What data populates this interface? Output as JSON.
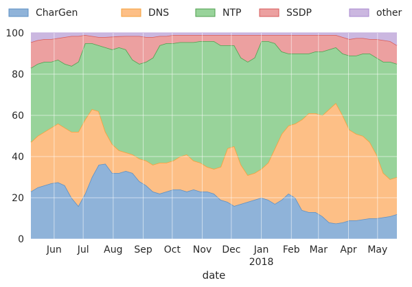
{
  "chart_data": {
    "type": "area",
    "stacked": true,
    "xlabel": "date",
    "ylabel": "",
    "ylim": [
      0,
      100
    ],
    "yticks": [
      0,
      20,
      40,
      60,
      80,
      100
    ],
    "grid": true,
    "legend_position": "top",
    "x_tick_labels": [
      {
        "date": "2017-06-01",
        "label": "Jun"
      },
      {
        "date": "2017-07-01",
        "label": "Jul"
      },
      {
        "date": "2017-08-01",
        "label": "Aug"
      },
      {
        "date": "2017-09-01",
        "label": "Sep"
      },
      {
        "date": "2017-10-01",
        "label": "Oct"
      },
      {
        "date": "2017-11-01",
        "label": "Nov"
      },
      {
        "date": "2017-12-01",
        "label": "Dec"
      },
      {
        "date": "2018-01-01",
        "label": "Jan\n2018"
      },
      {
        "date": "2018-02-01",
        "label": "Feb"
      },
      {
        "date": "2018-03-01",
        "label": "Mar"
      },
      {
        "date": "2018-04-01",
        "label": "Apr"
      },
      {
        "date": "2018-05-01",
        "label": "May"
      }
    ],
    "x": [
      "2017-05-08",
      "2017-05-15",
      "2017-05-22",
      "2017-05-29",
      "2017-06-05",
      "2017-06-12",
      "2017-06-19",
      "2017-06-26",
      "2017-07-03",
      "2017-07-10",
      "2017-07-17",
      "2017-07-24",
      "2017-07-31",
      "2017-08-07",
      "2017-08-14",
      "2017-08-21",
      "2017-08-28",
      "2017-09-04",
      "2017-09-11",
      "2017-09-18",
      "2017-09-25",
      "2017-10-02",
      "2017-10-09",
      "2017-10-16",
      "2017-10-23",
      "2017-10-30",
      "2017-11-06",
      "2017-11-13",
      "2017-11-20",
      "2017-11-27",
      "2017-12-04",
      "2017-12-11",
      "2017-12-18",
      "2017-12-25",
      "2018-01-01",
      "2018-01-08",
      "2018-01-15",
      "2018-01-22",
      "2018-01-29",
      "2018-02-05",
      "2018-02-12",
      "2018-02-19",
      "2018-02-26",
      "2018-03-05",
      "2018-03-12",
      "2018-03-19",
      "2018-03-26",
      "2018-04-02",
      "2018-04-09",
      "2018-04-16",
      "2018-04-23",
      "2018-04-30",
      "2018-05-07",
      "2018-05-14",
      "2018-05-21"
    ],
    "series": [
      {
        "name": "CharGen",
        "color": "#8fb3d9",
        "edge": "#5b8fc4",
        "values": [
          23,
          25,
          26,
          27,
          27.5,
          26,
          20,
          16,
          22,
          30,
          36,
          36.5,
          32,
          32,
          33,
          32,
          28,
          26,
          23,
          22,
          23,
          24,
          24,
          23,
          24,
          23,
          23,
          22,
          19,
          18,
          16,
          17,
          18,
          19,
          20,
          19,
          17,
          19,
          22,
          20,
          14,
          13,
          13,
          11,
          8,
          7.5,
          8,
          9,
          9,
          9.5,
          10,
          10,
          10.5,
          11,
          12
        ]
      },
      {
        "name": "DNS",
        "color": "#fdbf86",
        "edge": "#f5a03a",
        "values": [
          47,
          50,
          52,
          54,
          56,
          54,
          52,
          52,
          58,
          63,
          62,
          52,
          46,
          43,
          42,
          41,
          39,
          38,
          36,
          37,
          37,
          38,
          40,
          41,
          38,
          37,
          35,
          34,
          35,
          44,
          45,
          36,
          31,
          32,
          34,
          37,
          44,
          51,
          55,
          56,
          58,
          61,
          61,
          60,
          63,
          66,
          60,
          53,
          51,
          50,
          47,
          41,
          32,
          29,
          30
        ]
      },
      {
        "name": "NTP",
        "color": "#98d39a",
        "edge": "#4f9f4f",
        "values": [
          83,
          85,
          86,
          86,
          87,
          85,
          84,
          86,
          95,
          95,
          94,
          93,
          92,
          93,
          92,
          87,
          85,
          86,
          88,
          94,
          95,
          95,
          95.5,
          95.5,
          95.5,
          96,
          96,
          96,
          94,
          94,
          94,
          88,
          86,
          88,
          96,
          96,
          95,
          91,
          90,
          90,
          90,
          90,
          91,
          91,
          92,
          93,
          90,
          89,
          89,
          90,
          90,
          88,
          86,
          86,
          85
        ]
      },
      {
        "name": "SSDP",
        "color": "#eca0a0",
        "edge": "#d65a5a",
        "values": [
          95.5,
          96.5,
          97,
          97,
          97.5,
          98,
          98.5,
          98.5,
          99,
          98.5,
          98,
          98,
          98.2,
          98.4,
          98.5,
          98.5,
          98.5,
          98,
          98,
          98.5,
          98.5,
          99,
          99,
          99,
          99,
          99,
          99,
          99,
          99,
          99,
          99,
          99,
          99,
          99,
          99,
          99,
          99,
          99,
          99,
          99,
          99,
          99,
          99,
          99,
          99,
          99,
          98,
          97,
          97.5,
          97.5,
          97,
          97,
          96.5,
          96,
          94
        ]
      },
      {
        "name": "other",
        "color": "#cbb7e0",
        "edge": "#a889cf",
        "values": [
          100,
          100,
          100,
          100,
          100,
          100,
          100,
          100,
          100,
          100,
          100,
          100,
          100,
          100,
          100,
          100,
          100,
          100,
          100,
          100,
          100,
          100,
          100,
          100,
          100,
          100,
          100,
          100,
          100,
          100,
          100,
          100,
          100,
          100,
          100,
          100,
          100,
          100,
          100,
          100,
          100,
          100,
          100,
          100,
          100,
          100,
          100,
          100,
          100,
          100,
          100,
          100,
          100,
          100,
          100
        ]
      }
    ]
  }
}
